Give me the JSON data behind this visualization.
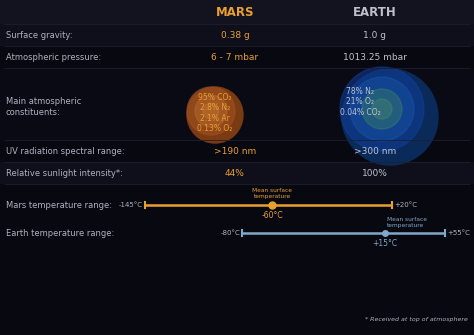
{
  "bg_color": "#080810",
  "header_bg": "#13131f",
  "row_dark": "#0c0c18",
  "row_light": "#13131f",
  "sep_color": "#2a2a40",
  "mars_color": "#e8a030",
  "earth_color": "#c0c0cc",
  "label_color": "#b0b0c0",
  "title_mars": "MARS",
  "title_earth": "EARTH",
  "mars_temp_min": -145,
  "mars_temp_max": 20,
  "mars_temp_mean": -60,
  "earth_temp_min": -80,
  "earth_temp_max": 55,
  "earth_temp_mean": 15,
  "mars_bar_color": "#e8a030",
  "earth_bar_color": "#80a8c8",
  "footnote": "* Received at top of atmosphere"
}
